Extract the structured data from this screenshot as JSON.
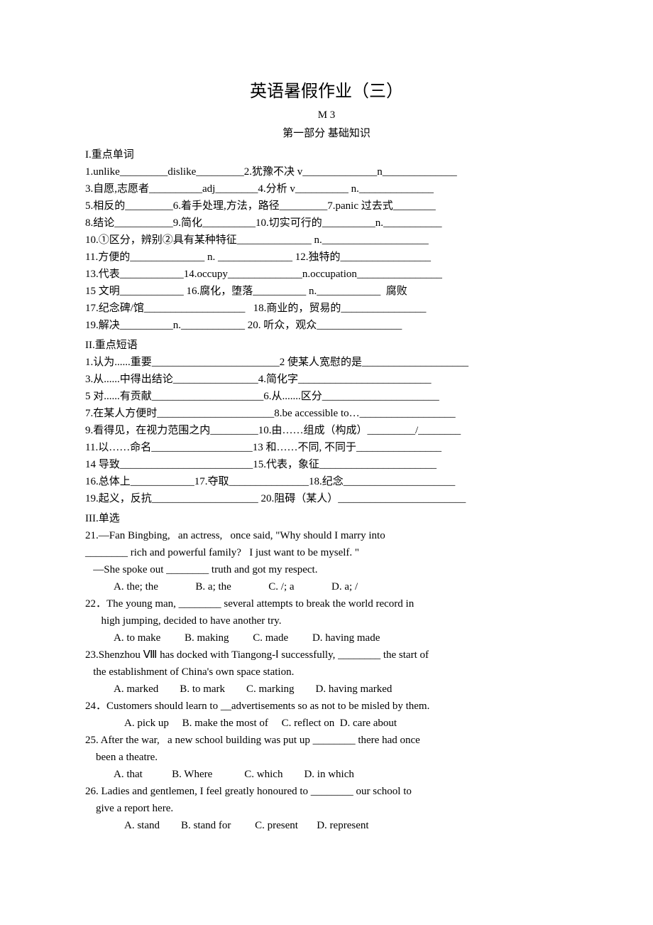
{
  "title": "英语暑假作业（三）",
  "subtitle": "M 3",
  "section_label": "第一部分    基础知识",
  "sec1_heading": "I.重点单词",
  "vocab": [
    "1.unlike_________dislike_________2.犹豫不决 v______________n______________",
    "3.自愿,志愿者__________adj________4.分析 v__________ n.______________",
    "5.相反的_________6.着手处理,方法，路径_________7.panic 过去式________",
    "8.结论___________9.简化__________10.切实可行的__________n.___________",
    "10.①区分，辨别②具有某种特征______________ n.____________________",
    "11.方便的______________ n. ______________ 12.独特的_________________",
    "13.代表____________14.occupy______________n.occupation________________",
    "15 文明____________ 16.腐化，堕落__________ n.____________  腐败",
    "17.纪念碑/馆___________________   18.商业的，贸易的________________",
    "19.解决__________n.____________ 20. 听众，观众________________"
  ],
  "sec2_heading": "II.重点短语",
  "phrases": [
    "1.认为......重要________________________2 使某人宽慰的是____________________",
    "3.从......中得出结论________________4.简化字_________________________",
    "5 对......有贡献_____________________6.从.......区分______________________",
    "7.在某人方便时______________________8.be accessible to…__________________",
    "9.看得见，在视力范围之内_________10.由……组成（构成）_________/________",
    "11.以……命名___________________13 和……不同, 不同于________________",
    "14 导致_________________________15.代表，象征______________________",
    "16.总体上____________17.夺取_______________18.纪念_____________________",
    "19.起义，反抗____________________ 20.阻碍（某人）________________________"
  ],
  "sec3_heading": "III.单选",
  "questions": [
    {
      "lines": [
        "21.—Fan Bingbing,   an actress,   once said, \"Why should I marry into",
        "________ rich and powerful family?   I just want to be myself. \"",
        "   —She spoke out ________ truth and got my respect."
      ],
      "opts": "A. the; the              B. a; the              C. /; a              D. a; /"
    },
    {
      "lines": [
        "22．The young man, ________ several attempts to break the world record in",
        "      high jumping, decided to have another try."
      ],
      "opts": "A. to make         B. making         C. made         D. having made"
    },
    {
      "lines": [
        "23.Shenzhou Ⅷ has docked with Tiangong-Ⅰ successfully, ________ the start of",
        "   the establishment of China's own space station."
      ],
      "opts": "A. marked        B. to mark        C. marking        D. having marked"
    },
    {
      "lines": [
        "24．Customers should learn to __advertisements so as not to be misled by them."
      ],
      "opts": "    A. pick up     B. make the most of     C. reflect on  D. care about"
    },
    {
      "lines": [
        "25. After the war,   a new school building was put up ________ there had once",
        "    been a theatre."
      ],
      "opts": "A. that           B. Where            C. which        D. in which"
    },
    {
      "lines": [
        "26. Ladies and gentlemen, I feel greatly honoured to ________ our school to",
        "    give a report here."
      ],
      "opts": "    A. stand        B. stand for         C. present       D. represent"
    }
  ]
}
